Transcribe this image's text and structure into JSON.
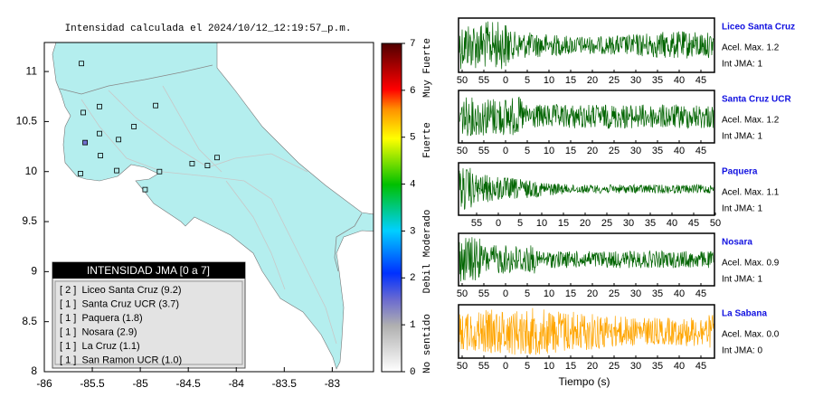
{
  "map": {
    "title": "Intensidad calculada el 2024/10/12_12:19:57_p.m.",
    "xlim": [
      -86,
      -82.57
    ],
    "ylim": [
      8,
      11.29
    ],
    "xticks": [
      -86,
      -85.5,
      -85,
      -84.5,
      -84,
      -83.5,
      -83
    ],
    "yticks": [
      8,
      8.5,
      9,
      9.5,
      10,
      10.5,
      11
    ],
    "land_color": "#b4eeee",
    "stations": [
      {
        "lon": -85.613,
        "lat": 11.08,
        "color": "#b4eeee"
      },
      {
        "lon": -85.425,
        "lat": 10.65,
        "color": "#b4eeee"
      },
      {
        "lon": -85.594,
        "lat": 10.59,
        "color": "#b4eeee"
      },
      {
        "lon": -84.84,
        "lat": 10.66,
        "color": "#b4eeee"
      },
      {
        "lon": -85.425,
        "lat": 10.38,
        "color": "#b4eeee"
      },
      {
        "lon": -85.575,
        "lat": 10.29,
        "color": "#7070d0"
      },
      {
        "lon": -85.226,
        "lat": 10.32,
        "color": "#b4eeee"
      },
      {
        "lon": -85.415,
        "lat": 10.16,
        "color": "#b4eeee"
      },
      {
        "lon": -85.623,
        "lat": 9.98,
        "color": "#b4eeee"
      },
      {
        "lon": -85.245,
        "lat": 10.01,
        "color": "#b4eeee"
      },
      {
        "lon": -84.8,
        "lat": 10.0,
        "color": "#b4eeee"
      },
      {
        "lon": -85.066,
        "lat": 10.45,
        "color": "#b4eeee"
      },
      {
        "lon": -84.95,
        "lat": 9.82,
        "color": "#b4eeee"
      },
      {
        "lon": -84.46,
        "lat": 10.08,
        "color": "#b4eeee"
      },
      {
        "lon": -84.2,
        "lat": 10.14,
        "color": "#b4eeee"
      },
      {
        "lon": -84.3,
        "lat": 10.06,
        "color": "#b4eeee"
      }
    ]
  },
  "colorbar": {
    "lim": [
      0,
      7
    ],
    "ticks": [
      0,
      1,
      2,
      3,
      4,
      5,
      6,
      7
    ],
    "levels": [
      "No sentido",
      "Debil",
      "Moderado",
      "Fuerte",
      "Muy Fuerte"
    ]
  },
  "legend": {
    "title": "INTENSIDAD JMA [0 a 7]",
    "entries": [
      "[ 2 ]  Liceo Santa Cruz (9.2)",
      "[ 1 ]  Santa Cruz UCR (3.7)",
      "[ 1 ]  Paquera (1.8)",
      "[ 1 ]  Nosara (2.9)",
      "[ 1 ]  La Cruz (1.1)",
      "[ 1 ]  San Ramon UCR (1.0)"
    ]
  },
  "waveforms": {
    "xlabel": "Tiempo (s)",
    "panels": [
      {
        "name": "Liceo Santa Cruz",
        "acel": "Acel. Max. 1.2",
        "int": "Int JMA: 1",
        "color": "#006400",
        "xticks": [
          50,
          55,
          0,
          5,
          10,
          15,
          20,
          25,
          30,
          35,
          40,
          45
        ]
      },
      {
        "name": "Santa Cruz UCR",
        "acel": "Acel. Max. 1.2",
        "int": "Int JMA: 1",
        "color": "#006400",
        "xticks": [
          50,
          55,
          0,
          5,
          10,
          15,
          20,
          25,
          30,
          35,
          40,
          45
        ]
      },
      {
        "name": "Paquera",
        "acel": "Acel. Max. 1.1",
        "int": "Int JMA: 1",
        "color": "#006400",
        "xticks": [
          55,
          0,
          5,
          10,
          15,
          20,
          25,
          30,
          35,
          40,
          45,
          50
        ]
      },
      {
        "name": "Nosara",
        "acel": "Acel. Max. 0.9",
        "int": "Int JMA: 1",
        "color": "#006400",
        "xticks": [
          50,
          55,
          0,
          5,
          10,
          15,
          20,
          25,
          30,
          35,
          40,
          45
        ]
      },
      {
        "name": "La Sabana",
        "acel": "Acel. Max. 0.0",
        "int": "Int JMA: 0",
        "color": "#ffa500",
        "xticks": [
          50,
          55,
          0,
          5,
          10,
          15,
          20,
          25,
          30,
          35,
          40,
          45
        ]
      }
    ]
  }
}
